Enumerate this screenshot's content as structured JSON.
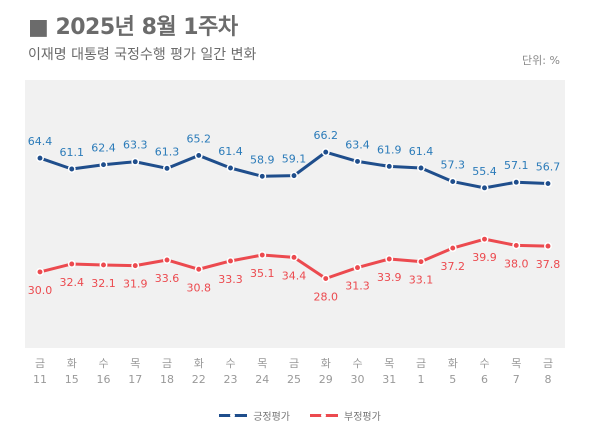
{
  "header": {
    "title": "■ 2025년 8월 1주차",
    "subtitle": "이재명 대통령 국정수행 평가 일간 변화",
    "unit": "단위: %"
  },
  "chart_data": {
    "type": "line",
    "title": "2025년 8월 1주차",
    "subtitle": "이재명 대통령 국정수행 평가 일간 변화",
    "categories": [
      [
        "금",
        "11"
      ],
      [
        "화",
        "15"
      ],
      [
        "수",
        "16"
      ],
      [
        "목",
        "17"
      ],
      [
        "금",
        "18"
      ],
      [
        "화",
        "22"
      ],
      [
        "수",
        "23"
      ],
      [
        "목",
        "24"
      ],
      [
        "금",
        "25"
      ],
      [
        "화",
        "29"
      ],
      [
        "수",
        "30"
      ],
      [
        "목",
        "31"
      ],
      [
        "금",
        "1"
      ],
      [
        "화",
        "5"
      ],
      [
        "수",
        "6"
      ],
      [
        "목",
        "7"
      ],
      [
        "금",
        "8"
      ]
    ],
    "ylim": [
      7,
      88
    ],
    "grid": false,
    "legend": "bottom",
    "series": [
      {
        "name": "긍정평가",
        "color": "#1f4e8c",
        "label_color": "#2b7bb9",
        "values": [
          64.4,
          61.1,
          62.4,
          63.3,
          61.3,
          65.2,
          61.4,
          58.9,
          59.1,
          66.2,
          63.4,
          61.9,
          61.4,
          57.3,
          55.4,
          57.1,
          56.7
        ],
        "labels": "above"
      },
      {
        "name": "부정평가",
        "color": "#ec4a4f",
        "label_color": "#ec4a4f",
        "values": [
          30.0,
          32.4,
          32.1,
          31.9,
          33.6,
          30.8,
          33.3,
          35.1,
          34.4,
          28.0,
          31.3,
          33.9,
          33.1,
          37.2,
          39.9,
          38.0,
          37.8
        ],
        "labels": "below"
      }
    ]
  }
}
